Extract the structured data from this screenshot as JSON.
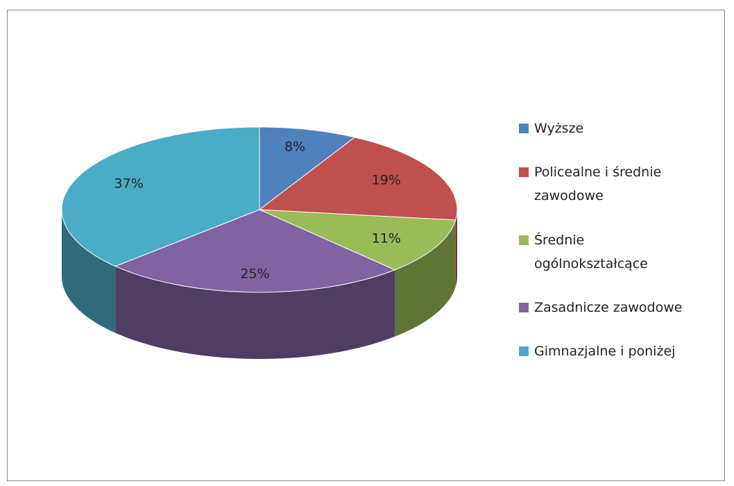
{
  "chart_data": {
    "type": "pie",
    "categories": [
      "Wyższe",
      "Policealne i średnie zawodowe",
      "Średnie ogólnokształcące",
      "Zasadnicze zawodowe",
      "Gimnazjalne i poniżej"
    ],
    "values": [
      8,
      19,
      11,
      25,
      37
    ],
    "value_labels": [
      "8%",
      "19%",
      "11%",
      "25%",
      "37%"
    ],
    "colors": [
      "#4f81bd",
      "#c0504d",
      "#9bbb59",
      "#8064a2",
      "#4bacc6"
    ],
    "legend": "right"
  }
}
